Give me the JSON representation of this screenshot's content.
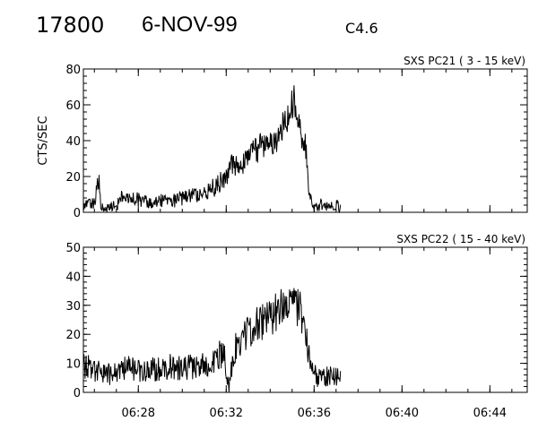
{
  "header": {
    "event_number": "17800",
    "date": "6-NOV-99",
    "flare_class": "C4.6"
  },
  "chart_data": [
    {
      "type": "line",
      "title": "SXS PC21  (  3 - 15 keV)",
      "ylabel": "CTS/SEC",
      "xlabel": "",
      "x_ticks": [
        "06:28",
        "06:32",
        "06:36",
        "06:40",
        "06:44"
      ],
      "x_tick_minutes": [
        388,
        392,
        396,
        400,
        404
      ],
      "xlim_minutes": [
        385.5,
        405.7
      ],
      "ylim": [
        0,
        80
      ],
      "y_ticks": [
        "0",
        "20",
        "40",
        "60",
        "80"
      ],
      "y_tick_values": [
        0,
        20,
        40,
        60,
        80
      ],
      "grid": false,
      "series": [
        {
          "x_minutes": [
            385.5,
            386.0,
            386.2,
            386.3,
            386.5,
            387.0,
            387.3,
            387.5,
            388.0,
            388.5,
            389.0,
            389.5,
            390.0,
            390.5,
            391.0,
            391.5,
            392.0,
            392.3,
            392.6,
            393.0,
            393.3,
            393.6,
            394.0,
            394.3,
            394.6,
            394.9,
            395.1,
            395.4,
            395.6,
            395.8,
            396.0,
            396.3,
            396.6,
            397.0,
            397.2
          ],
          "y": [
            4,
            5,
            18,
            2,
            3,
            4,
            10,
            8,
            7,
            6,
            7,
            6,
            8,
            9,
            12,
            14,
            20,
            28,
            25,
            30,
            34,
            37,
            38,
            42,
            50,
            56,
            64,
            45,
            38,
            10,
            3,
            4,
            3,
            4,
            2
          ]
        }
      ]
    },
    {
      "type": "line",
      "title": "SXS PC22  ( 15 - 40 keV)",
      "ylabel": "",
      "xlabel": "",
      "x_ticks": [
        "06:28",
        "06:32",
        "06:36",
        "06:40",
        "06:44"
      ],
      "x_tick_minutes": [
        388,
        392,
        396,
        400,
        404
      ],
      "xlim_minutes": [
        385.5,
        405.7
      ],
      "ylim": [
        0,
        50
      ],
      "y_ticks": [
        "0",
        "10",
        "20",
        "30",
        "40",
        "50"
      ],
      "y_tick_values": [
        0,
        10,
        20,
        30,
        40,
        50
      ],
      "grid": false,
      "series": [
        {
          "x_minutes": [
            385.5,
            386.0,
            386.5,
            387.0,
            387.5,
            388.0,
            388.5,
            389.0,
            389.5,
            390.0,
            390.5,
            391.0,
            391.5,
            391.9,
            392.1,
            392.4,
            392.8,
            393.2,
            393.6,
            394.0,
            394.3,
            394.6,
            394.9,
            395.1,
            395.4,
            395.6,
            395.8,
            396.0,
            396.3,
            396.6,
            397.0,
            397.2
          ],
          "y": [
            9,
            8,
            6,
            7,
            9,
            7,
            8,
            8,
            9,
            8,
            9,
            9,
            12,
            14,
            1,
            15,
            20,
            22,
            24,
            26,
            28,
            32,
            34,
            30,
            28,
            20,
            10,
            6,
            5,
            6,
            5,
            6
          ]
        }
      ]
    }
  ]
}
